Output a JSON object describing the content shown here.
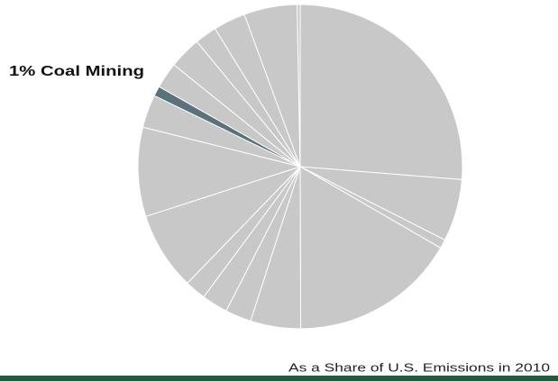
{
  "chart_data": {
    "type": "pie",
    "categories": [
      null,
      null,
      null,
      null,
      null,
      null,
      null,
      null,
      null,
      null,
      null,
      "Coal Mining",
      null,
      null,
      null,
      null,
      null,
      null
    ],
    "values": [
      26.3,
      6.2,
      0.9,
      16.6,
      5,
      2.6,
      2.6,
      2.1,
      7.8,
      8.9,
      3.3,
      1,
      2.6,
      3.2,
      2.2,
      3.2,
      5.3,
      0.3
    ],
    "value_labels": [
      null,
      null,
      null,
      null,
      null,
      null,
      null,
      null,
      null,
      null,
      null,
      "1%",
      null,
      null,
      null,
      null,
      null,
      null
    ],
    "colors": [
      "#c8c8c8",
      "#c8c8c8",
      "#c8c8c8",
      "#c8c8c8",
      "#c8c8c8",
      "#c8c8c8",
      "#c8c8c8",
      "#c8c8c8",
      "#c8c8c8",
      "#c8c8c8",
      "#c8c8c8",
      "#5b727d",
      "#c8c8c8",
      "#c8c8c8",
      "#c8c8c8",
      "#c8c8c8",
      "#c8c8c8",
      "#c8c8c8"
    ],
    "subtitle": "As a Share of U.S. Emissions in 2010"
  }
}
